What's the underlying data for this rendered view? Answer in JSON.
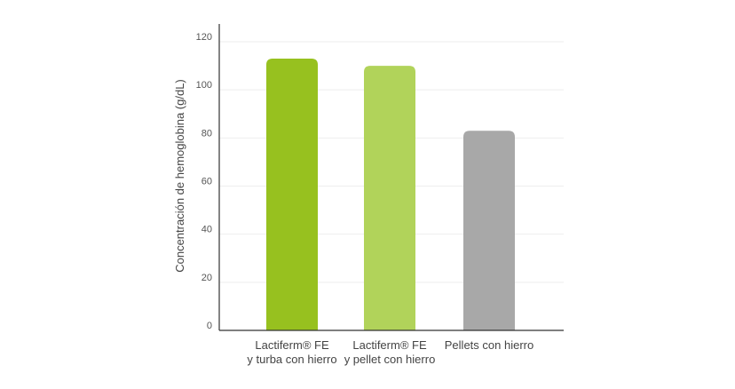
{
  "chart_data": {
    "type": "bar",
    "title": "",
    "ylabel": "Concentración de hemoglobina (g/dL)",
    "xlabel": "",
    "ylim": [
      0,
      120
    ],
    "yticks": [
      0,
      20,
      40,
      60,
      80,
      100,
      120
    ],
    "grid": true,
    "categories": [
      [
        "Lactiferm® FE",
        "y turba con hierro"
      ],
      [
        "Lactiferm® FE",
        "y pellet con hierro"
      ],
      [
        "Pellets con hierro"
      ]
    ],
    "values": [
      113,
      110,
      83
    ],
    "colors": [
      "#97c11f",
      "#b1d35a",
      "#a8a8a8"
    ]
  }
}
